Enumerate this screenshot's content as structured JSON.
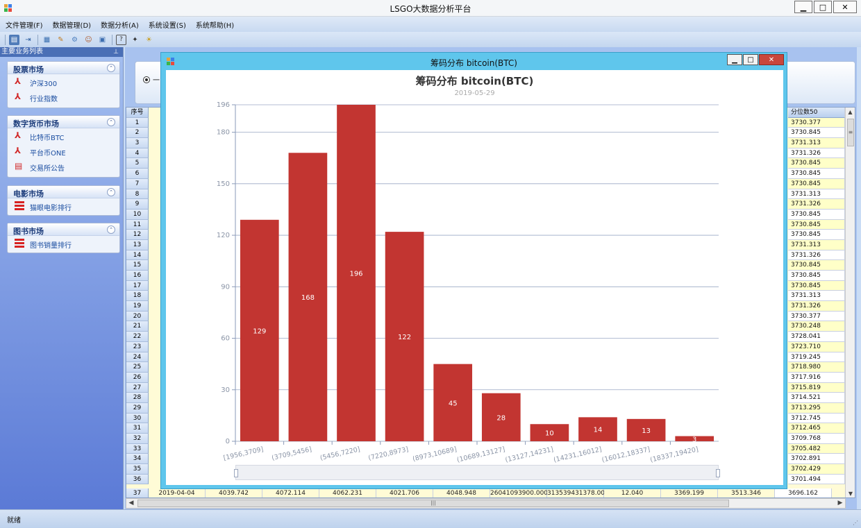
{
  "app": {
    "title": "LSGO大数据分析平台"
  },
  "menu": [
    "文件管理(F)",
    "数据管理(D)",
    "数据分析(A)",
    "系统设置(S)",
    "系统帮助(H)"
  ],
  "toolbar_icons": [
    "open-icon",
    "import-icon",
    "export-icon",
    "chart-icon",
    "tools-icon",
    "users-icon",
    "window-icon",
    "help-icon",
    "about-icon",
    "tips-icon"
  ],
  "left_panel": {
    "header": "主要业务列表",
    "pin_icon": "pin-icon",
    "groups": [
      {
        "title": "股票市场",
        "items": [
          "沪深300",
          "行业指数"
        ]
      },
      {
        "title": "数字货币市场",
        "items": [
          "比特币BTC",
          "平台币ONE",
          "交易所公告"
        ]
      },
      {
        "title": "电影市场",
        "items": [
          "猫眼电影排行"
        ]
      },
      {
        "title": "图书市场",
        "items": [
          "图书销量排行"
        ]
      }
    ]
  },
  "filter": {
    "radio_label": "一"
  },
  "grid": {
    "row_header": "序号",
    "quantile_header": "分位数50",
    "rows": [
      "1",
      "2",
      "3",
      "4",
      "5",
      "6",
      "7",
      "8",
      "9",
      "10",
      "11",
      "12",
      "13",
      "14",
      "15",
      "16",
      "17",
      "18",
      "19",
      "20",
      "21",
      "22",
      "23",
      "24",
      "25",
      "26",
      "27",
      "28",
      "29",
      "30",
      "31",
      "32",
      "33",
      "34",
      "35",
      "36",
      "37"
    ],
    "quantile_values": [
      "3730.377",
      "3730.845",
      "3731.313",
      "3731.326",
      "3730.845",
      "3730.845",
      "3730.845",
      "3731.313",
      "3731.326",
      "3730.845",
      "3730.845",
      "3730.845",
      "3731.313",
      "3731.326",
      "3730.845",
      "3730.845",
      "3730.845",
      "3731.313",
      "3731.326",
      "3730.377",
      "3730.248",
      "3728.041",
      "3723.710",
      "3719.245",
      "3718.980",
      "3717.916",
      "3715.819",
      "3714.521",
      "3713.295",
      "3712.745",
      "3712.465",
      "3709.768",
      "3705.482",
      "3702.891",
      "3702.429",
      "3701.494",
      "3696.162"
    ],
    "last_row": [
      "2019-04-04",
      "4039.742",
      "4072.114",
      "4062.231",
      "4021.706",
      "4048.948",
      "26041093900.000",
      "313539431378.000",
      "12.040",
      "3369.199",
      "3513.346"
    ]
  },
  "status": {
    "text": "就绪"
  },
  "dialog": {
    "title": "筹码分布 bitcoin(BTC)"
  },
  "chart_data": {
    "type": "bar",
    "title": "筹码分布 bitcoin(BTC)",
    "subtitle": "2019-05-29",
    "categories": [
      "[1956,3709]",
      "(3709,5456]",
      "(5456,7220]",
      "(7220,8973]",
      "(8973,10689]",
      "(10689,13127]",
      "(13127,14231]",
      "(14231,16012]",
      "(16012,18337]",
      "(18337,19420]"
    ],
    "values": [
      129,
      168,
      196,
      122,
      45,
      28,
      10,
      14,
      13,
      3
    ],
    "yticks": [
      0,
      30,
      60,
      90,
      120,
      150,
      180,
      196
    ],
    "ylim": [
      0,
      196
    ],
    "bar_color": "#c23531",
    "grid": true
  }
}
